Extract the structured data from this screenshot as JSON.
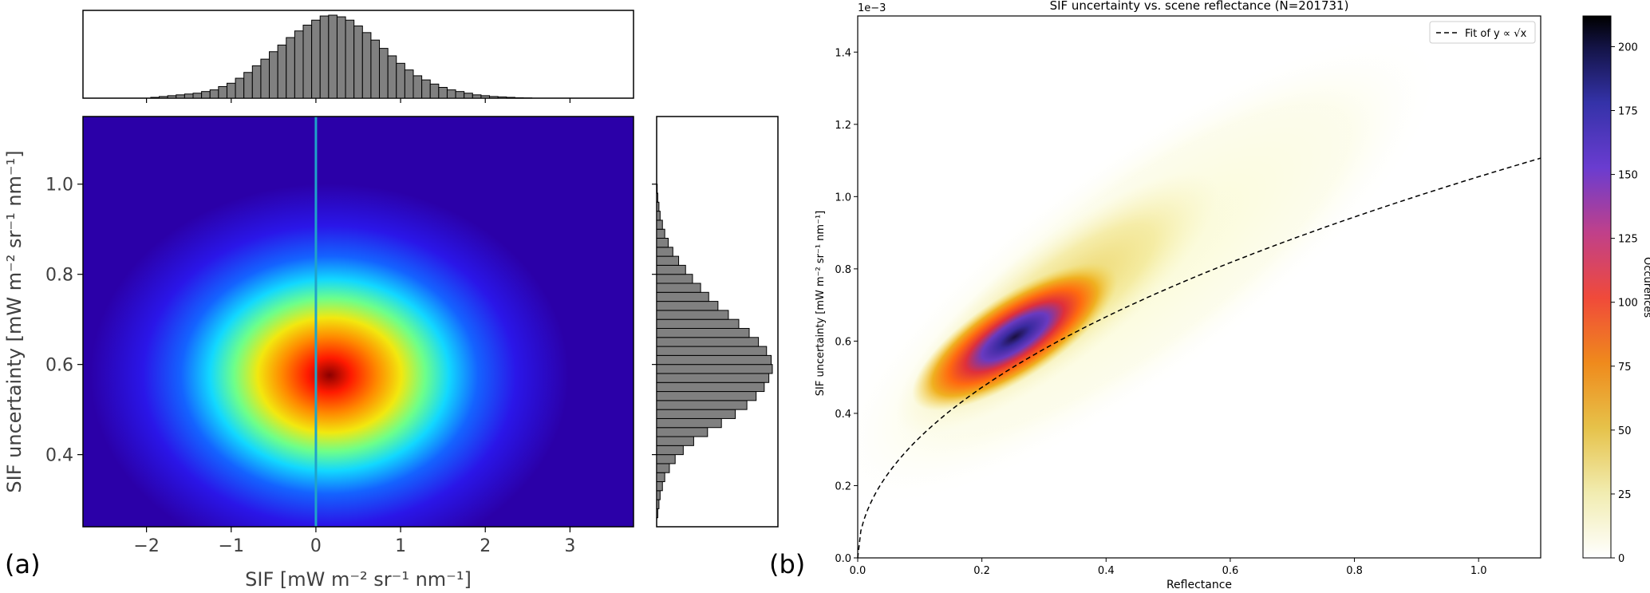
{
  "figure": {
    "panel_a_letter": "(a)",
    "panel_b_letter": "(b)"
  },
  "chart_data": [
    {
      "panel": "(a)",
      "type": "heatmap",
      "title": "",
      "xlabel": "SIF [mW m⁻² sr⁻¹ nm⁻¹]",
      "ylabel": "SIF uncertainty [mW m⁻² sr⁻¹ nm⁻¹]",
      "xlim": [
        -2.75,
        3.75
      ],
      "ylim": [
        0.24,
        1.15
      ],
      "xticks": [
        -2,
        -1,
        0,
        1,
        2,
        3
      ],
      "xtick_labels": [
        "−2",
        "−1",
        "0",
        "1",
        "2",
        "3"
      ],
      "yticks": [
        0.4,
        0.6,
        0.8,
        1.0
      ],
      "ytick_labels": [
        "0.4",
        "0.6",
        "0.8",
        "1.0"
      ],
      "colormap": "jet",
      "grid": false,
      "density_peak": {
        "x": 0.2,
        "y": 0.57
      },
      "vertical_reference_line": {
        "x": 0.0,
        "color": "#1fa3c9"
      },
      "marginal_x_histogram": {
        "bin_centers": [
          -1.9,
          -1.8,
          -1.7,
          -1.6,
          -1.5,
          -1.4,
          -1.3,
          -1.2,
          -1.1,
          -1.0,
          -0.9,
          -0.8,
          -0.7,
          -0.6,
          -0.5,
          -0.4,
          -0.3,
          -0.2,
          -0.1,
          0.0,
          0.1,
          0.2,
          0.3,
          0.4,
          0.5,
          0.6,
          0.7,
          0.8,
          0.9,
          1.0,
          1.1,
          1.2,
          1.3,
          1.4,
          1.5,
          1.6,
          1.7,
          1.8,
          1.9,
          2.0,
          2.1,
          2.2,
          2.3,
          2.4,
          2.5
        ],
        "relative_counts": [
          0.01,
          0.02,
          0.03,
          0.04,
          0.05,
          0.06,
          0.08,
          0.1,
          0.14,
          0.18,
          0.24,
          0.31,
          0.39,
          0.47,
          0.56,
          0.64,
          0.73,
          0.81,
          0.88,
          0.94,
          0.99,
          1.0,
          0.98,
          0.94,
          0.87,
          0.79,
          0.7,
          0.6,
          0.51,
          0.42,
          0.34,
          0.27,
          0.22,
          0.17,
          0.13,
          0.1,
          0.08,
          0.06,
          0.04,
          0.03,
          0.02,
          0.015,
          0.01,
          0.005,
          0.003
        ],
        "color": "#808080"
      },
      "marginal_y_histogram": {
        "bin_centers": [
          0.27,
          0.29,
          0.31,
          0.33,
          0.35,
          0.37,
          0.39,
          0.41,
          0.43,
          0.45,
          0.47,
          0.49,
          0.51,
          0.53,
          0.55,
          0.57,
          0.59,
          0.61,
          0.63,
          0.65,
          0.67,
          0.69,
          0.71,
          0.73,
          0.75,
          0.77,
          0.79,
          0.81,
          0.83,
          0.85,
          0.87,
          0.89,
          0.91,
          0.93,
          0.95,
          0.97,
          0.99
        ],
        "relative_counts": [
          0.01,
          0.02,
          0.03,
          0.05,
          0.07,
          0.11,
          0.16,
          0.23,
          0.32,
          0.44,
          0.56,
          0.68,
          0.78,
          0.86,
          0.93,
          0.97,
          1.0,
          0.99,
          0.95,
          0.88,
          0.8,
          0.71,
          0.62,
          0.53,
          0.45,
          0.38,
          0.31,
          0.25,
          0.19,
          0.14,
          0.1,
          0.07,
          0.05,
          0.03,
          0.02,
          0.01,
          0.005
        ],
        "color": "#808080"
      }
    },
    {
      "panel": "(b)",
      "type": "heatmap",
      "title": "SIF uncertainty vs. scene reflectance (N=201731)",
      "xlabel": "Reflectance",
      "ylabel": "SIF uncertainty [mW m⁻² sr⁻¹ nm⁻¹]",
      "y_offset_text": "1e−3",
      "xlim": [
        0.0,
        1.1
      ],
      "ylim": [
        0.0,
        1.5
      ],
      "xticks": [
        0.0,
        0.2,
        0.4,
        0.6,
        0.8,
        1.0
      ],
      "xtick_labels": [
        "0.0",
        "0.2",
        "0.4",
        "0.6",
        "0.8",
        "1.0"
      ],
      "yticks": [
        0.0,
        0.2,
        0.4,
        0.6,
        0.8,
        1.0,
        1.2,
        1.4
      ],
      "ytick_labels": [
        "0.0",
        "0.2",
        "0.4",
        "0.6",
        "0.8",
        "1.0",
        "1.2",
        "1.4"
      ],
      "grid": false,
      "legend_position": "top-right",
      "fit_line": {
        "label": "Fit of y ∝ √x",
        "model": "y = a * sqrt(x)",
        "a": 1.055,
        "style": "dashed",
        "color": "#000000"
      },
      "density_peak": {
        "x": 0.26,
        "y": 0.61
      },
      "colorbar": {
        "label": "Occurences",
        "range": [
          0,
          212
        ],
        "ticks": [
          0,
          25,
          50,
          75,
          100,
          125,
          150,
          175,
          200
        ],
        "tick_labels": [
          "0",
          "25",
          "50",
          "75",
          "100",
          "125",
          "150",
          "175",
          "200"
        ],
        "colormap": "CMRmap_r"
      }
    }
  ]
}
